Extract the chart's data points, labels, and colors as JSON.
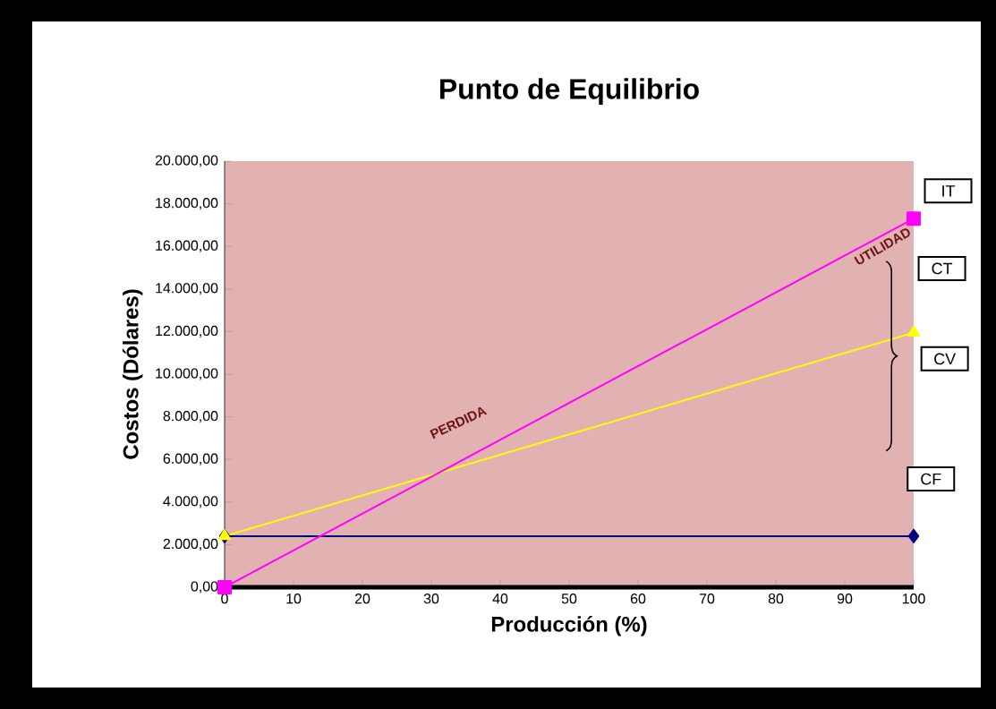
{
  "chart_data": {
    "type": "line",
    "title": "Punto de Equilibrio",
    "xlabel": "Producción (%)",
    "ylabel": "Costos (Dólares)",
    "x": [
      0,
      100
    ],
    "series": [
      {
        "color": "#ff00ff",
        "marker": "square",
        "values": [
          0,
          17300
        ]
      },
      {
        "color": "#ffff00",
        "marker": "triangle",
        "values": [
          2400,
          11950
        ]
      },
      {
        "color": "#000080",
        "marker": "diamond",
        "values": [
          2400,
          2400
        ]
      }
    ],
    "xlim": [
      0,
      100
    ],
    "xticks": [
      0,
      10,
      20,
      30,
      40,
      50,
      60,
      70,
      80,
      90,
      100
    ],
    "ylim": [
      0,
      20000
    ],
    "yticks": [
      {
        "value": 0,
        "label": "0,00"
      },
      {
        "value": 2000,
        "label": "2.000,00"
      },
      {
        "value": 4000,
        "label": "4.000,00"
      },
      {
        "value": 6000,
        "label": "6.000,00"
      },
      {
        "value": 8000,
        "label": "8.000,00"
      },
      {
        "value": 10000,
        "label": "10.000,00"
      },
      {
        "value": 12000,
        "label": "12.000,00"
      },
      {
        "value": 14000,
        "label": "14.000,00"
      },
      {
        "value": 16000,
        "label": "16.000,00"
      },
      {
        "value": 18000,
        "label": "18.000,00"
      },
      {
        "value": 20000,
        "label": "20.000,00"
      }
    ],
    "annotations": [
      "IT",
      "CT",
      "CV",
      "CF",
      "UTILIDAD",
      "PERDIDA"
    ],
    "grid": false,
    "line_style": "solid"
  }
}
